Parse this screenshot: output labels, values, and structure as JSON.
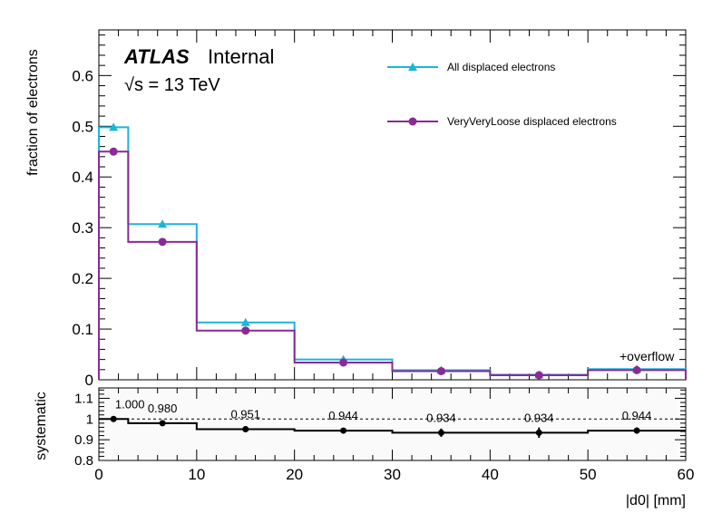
{
  "chart_data": [
    {
      "type": "step",
      "ylabel": "fraction of electrons",
      "xlim": [
        0,
        60
      ],
      "ylim": [
        0,
        0.69
      ],
      "yticks": [
        0,
        0.1,
        0.2,
        0.3,
        0.4,
        0.5,
        0.6
      ],
      "bin_edges": [
        0,
        3,
        10,
        20,
        30,
        40,
        50,
        60
      ],
      "bin_centers": [
        1.5,
        6.5,
        15,
        25,
        35,
        45,
        55
      ],
      "series": [
        {
          "name": "All displaced electrons",
          "color": "#1ab5d9",
          "marker": "triangle",
          "values": [
            0.498,
            0.307,
            0.113,
            0.04,
            0.019,
            0.01,
            0.021
          ]
        },
        {
          "name": "VeryVeryLoose displaced electrons",
          "color": "#8a2a96",
          "marker": "circle",
          "values": [
            0.45,
            0.272,
            0.097,
            0.034,
            0.017,
            0.009,
            0.019
          ]
        }
      ],
      "annotations": {
        "experiment": "ATLAS",
        "status": "Internal",
        "energy_label": "√s = 13 TeV",
        "overflow": "+overflow"
      },
      "legend_position": "top-right"
    },
    {
      "type": "step",
      "ylabel": "systematic",
      "xlabel": "|d0|   [mm]",
      "xlim": [
        0,
        60
      ],
      "ylim": [
        0.8,
        1.15
      ],
      "yticks": [
        0.8,
        0.9,
        1,
        1.1
      ],
      "xticks": [
        0,
        10,
        20,
        30,
        40,
        50,
        60
      ],
      "reference_line": 1,
      "bin_edges": [
        0,
        3,
        10,
        20,
        30,
        40,
        50,
        60
      ],
      "bin_centers": [
        1.5,
        6.5,
        15,
        25,
        35,
        45,
        55
      ],
      "values": [
        1.0,
        0.98,
        0.951,
        0.944,
        0.934,
        0.934,
        0.944
      ],
      "labels": [
        "1.000",
        "0.980",
        "0.951",
        "0.944",
        "0.934",
        "0.934",
        "0.944"
      ],
      "errors": [
        0.005,
        0.006,
        0.008,
        0.012,
        0.02,
        0.025,
        0.015
      ]
    }
  ]
}
